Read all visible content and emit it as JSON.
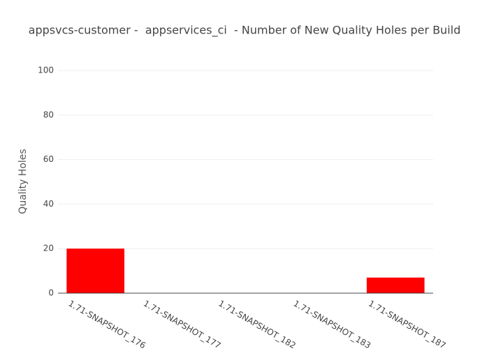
{
  "chart_data": {
    "type": "bar",
    "title": "appsvcs-customer -  appservices_ci  - Number of New Quality Holes per Build",
    "y_label": "Quality Holes",
    "categories": [
      "1.71-SNAPSHOT_176",
      "1.71-SNAPSHOT_177",
      "1.71-SNAPSHOT_182",
      "1.71-SNAPSHOT_183",
      "1.71-SNAPSHOT_187"
    ],
    "values": [
      20,
      0,
      0,
      0,
      7
    ],
    "color": "#ff0000",
    "ylim": [
      0,
      100
    ],
    "yticks": [
      0,
      20,
      40,
      60,
      80,
      100
    ],
    "grid": true
  }
}
